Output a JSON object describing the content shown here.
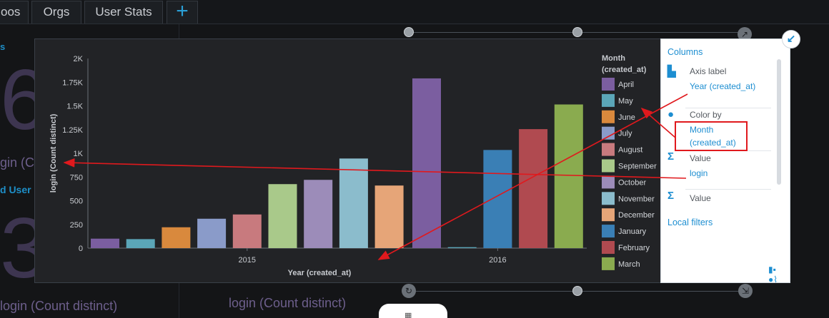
{
  "tabs": [
    {
      "label": "oos"
    },
    {
      "label": "Orgs"
    },
    {
      "label": "User Stats"
    }
  ],
  "tab_add_label": "+",
  "background": {
    "big_number_top": "6",
    "label_top": "gin (C",
    "section_label": "d User",
    "big_number_bottom": "3",
    "label_bottom_left": "login (Count distinct)",
    "label_bottom_right": "login (Count distinct)",
    "top_left_small": "s"
  },
  "config": {
    "section_title": "Columns",
    "items": [
      {
        "icon": "axis-icon",
        "label": "Axis label",
        "value": "Year (created_at)"
      },
      {
        "icon": "palette-icon",
        "label": "Color by",
        "value": "Month (created_at)"
      },
      {
        "icon": "sigma-icon",
        "label": "Value",
        "value": "login"
      },
      {
        "icon": "sigma-icon",
        "label": "Value",
        "value": ""
      }
    ],
    "local_filters": "Local filters"
  },
  "chart_data": {
    "type": "bar",
    "xlabel": "Year (created_at)",
    "ylabel": "login (Count distinct)",
    "ylim": [
      0,
      2000
    ],
    "y_ticks": [
      "0",
      "250",
      "500",
      "750",
      "1K",
      "1.25K",
      "1.5K",
      "1.75K",
      "2K"
    ],
    "y_tick_values": [
      0,
      250,
      500,
      750,
      1000,
      1250,
      1500,
      1750,
      2000
    ],
    "legend_title": "Month (created_at)",
    "categories": [
      "2015",
      "2016"
    ],
    "series": [
      {
        "name": "April",
        "color": "#7b5ea0",
        "values": [
          100,
          1790
        ]
      },
      {
        "name": "May",
        "color": "#5ba6b8",
        "values": [
          95,
          10
        ]
      },
      {
        "name": "June",
        "color": "#d9893d",
        "values": [
          220,
          null
        ]
      },
      {
        "name": "July",
        "color": "#8a9bc9",
        "values": [
          310,
          null
        ]
      },
      {
        "name": "August",
        "color": "#c87a7e",
        "values": [
          355,
          null
        ]
      },
      {
        "name": "September",
        "color": "#a9c98a",
        "values": [
          675,
          null
        ]
      },
      {
        "name": "October",
        "color": "#9c8cb9",
        "values": [
          720,
          null
        ]
      },
      {
        "name": "November",
        "color": "#8bbccc",
        "values": [
          945,
          null
        ]
      },
      {
        "name": "December",
        "color": "#e6a578",
        "values": [
          660,
          null
        ]
      },
      {
        "name": "January",
        "color": "#3a7fb5",
        "values": [
          null,
          1035
        ]
      },
      {
        "name": "February",
        "color": "#b04a50",
        "values": [
          null,
          1255
        ]
      },
      {
        "name": "March",
        "color": "#8aab4f",
        "values": [
          null,
          1515
        ]
      }
    ]
  }
}
